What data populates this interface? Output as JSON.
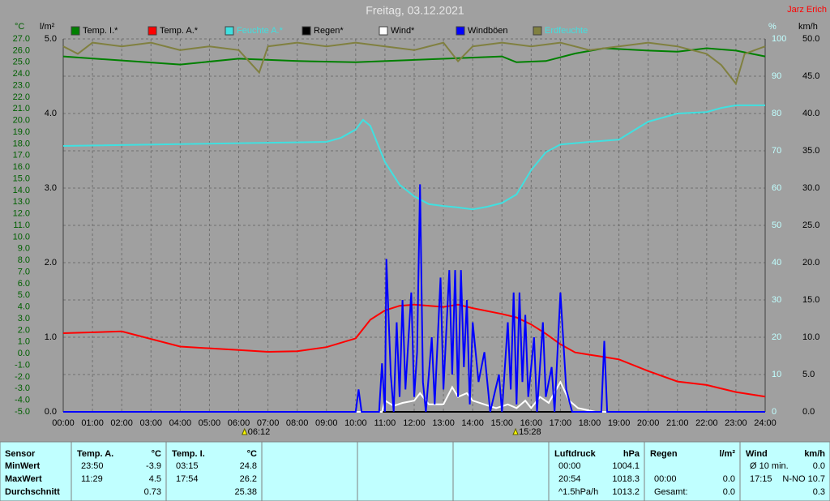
{
  "chart_data": {
    "type": "line",
    "title": "Freitag, 03.12.2021",
    "author": "Jarz Erich",
    "units": {
      "y": "°C",
      "y4": "l/m²",
      "y2": "%",
      "y3": "km/h"
    },
    "sunrise": "06:12",
    "sunset": "15:28",
    "grid": true,
    "xlim": [
      0,
      24
    ],
    "xticks": [
      {
        "value": 0,
        "label": "00:00"
      },
      {
        "value": 1,
        "label": "01:00"
      },
      {
        "value": 2,
        "label": "02:00"
      },
      {
        "value": 3,
        "label": "03:00"
      },
      {
        "value": 4,
        "label": "04:00"
      },
      {
        "value": 5,
        "label": "05:00"
      },
      {
        "value": 6,
        "label": "06:00"
      },
      {
        "value": 7,
        "label": "07:00"
      },
      {
        "value": 8,
        "label": "08:00"
      },
      {
        "value": 9,
        "label": "09:00"
      },
      {
        "value": 10,
        "label": "10:00"
      },
      {
        "value": 11,
        "label": "11:00"
      },
      {
        "value": 12,
        "label": "12:00"
      },
      {
        "value": 13,
        "label": "13:00"
      },
      {
        "value": 14,
        "label": "14:00"
      },
      {
        "value": 15,
        "label": "15:00"
      },
      {
        "value": 16,
        "label": "16:00"
      },
      {
        "value": 17,
        "label": "17:00"
      },
      {
        "value": 18,
        "label": "18:00"
      },
      {
        "value": 19,
        "label": "19:00"
      },
      {
        "value": 20,
        "label": "20:00"
      },
      {
        "value": 21,
        "label": "21:00"
      },
      {
        "value": 22,
        "label": "22:00"
      },
      {
        "value": 23,
        "label": "23:00"
      },
      {
        "value": 24,
        "label": "24:00"
      }
    ],
    "ylim": [
      -5,
      27
    ],
    "yticks": [
      {
        "value": -5,
        "label": "-5.0"
      },
      {
        "value": -4,
        "label": "-4.0"
      },
      {
        "value": -3,
        "label": "-3.0"
      },
      {
        "value": -2,
        "label": "-2.0"
      },
      {
        "value": -1,
        "label": "-1.0"
      },
      {
        "value": 0,
        "label": "0.0"
      },
      {
        "value": 1,
        "label": "1.0"
      },
      {
        "value": 2,
        "label": "2.0"
      },
      {
        "value": 3,
        "label": "3.0"
      },
      {
        "value": 4,
        "label": "4.0"
      },
      {
        "value": 5,
        "label": "5.0"
      },
      {
        "value": 6,
        "label": "6.0"
      },
      {
        "value": 7,
        "label": "7.0"
      },
      {
        "value": 8,
        "label": "8.0"
      },
      {
        "value": 9,
        "label": "9.0"
      },
      {
        "value": 10,
        "label": "10.0"
      },
      {
        "value": 11,
        "label": "11.0"
      },
      {
        "value": 12,
        "label": "12.0"
      },
      {
        "value": 13,
        "label": "13.0"
      },
      {
        "value": 14,
        "label": "14.0"
      },
      {
        "value": 15,
        "label": "15.0"
      },
      {
        "value": 16,
        "label": "16.0"
      },
      {
        "value": 17,
        "label": "17.0"
      },
      {
        "value": 18,
        "label": "18.0"
      },
      {
        "value": 19,
        "label": "19.0"
      },
      {
        "value": 20,
        "label": "20.0"
      },
      {
        "value": 21,
        "label": "21.0"
      },
      {
        "value": 22,
        "label": "22.0"
      },
      {
        "value": 23,
        "label": "23.0"
      },
      {
        "value": 24,
        "label": "24.0"
      },
      {
        "value": 25,
        "label": "25.0"
      },
      {
        "value": 26,
        "label": "26.0"
      },
      {
        "value": 27,
        "label": "27.0"
      }
    ],
    "y4lim": [
      0,
      5
    ],
    "y4ticks": [
      {
        "value": 0,
        "label": "0.0"
      },
      {
        "value": 1,
        "label": "1.0"
      },
      {
        "value": 2,
        "label": "2.0"
      },
      {
        "value": 3,
        "label": "3.0"
      },
      {
        "value": 4,
        "label": "4.0"
      },
      {
        "value": 5,
        "label": "5.0"
      }
    ],
    "y2lim": [
      0,
      100
    ],
    "y2ticks": [
      0,
      10,
      20,
      30,
      40,
      50,
      60,
      70,
      80,
      90,
      100
    ],
    "y3lim": [
      0,
      50
    ],
    "y3ticks": [
      {
        "value": 0,
        "label": "0.0"
      },
      {
        "value": 5,
        "label": "5.0"
      },
      {
        "value": 10,
        "label": "10.0"
      },
      {
        "value": 15,
        "label": "15.0"
      },
      {
        "value": 20,
        "label": "20.0"
      },
      {
        "value": 25,
        "label": "25.0"
      },
      {
        "value": 30,
        "label": "30.0"
      },
      {
        "value": 35,
        "label": "35.0"
      },
      {
        "value": 40,
        "label": "40.0"
      },
      {
        "value": 45,
        "label": "45.0"
      },
      {
        "value": 50,
        "label": "50.0"
      }
    ],
    "series": [
      {
        "name": "Temp. I.*",
        "color": "#008000",
        "axis": "y",
        "x": [
          0,
          4,
          6,
          8,
          10,
          12,
          15,
          15.5,
          16.5,
          17.5,
          18.5,
          20,
          21,
          22,
          23,
          24
        ],
        "values": [
          25.5,
          24.8,
          25.3,
          25.1,
          25.0,
          25.2,
          25.5,
          25.0,
          25.1,
          25.75,
          26.2,
          26.0,
          25.9,
          26.2,
          26.0,
          25.5
        ]
      },
      {
        "name": "Temp. A.*",
        "color": "#ff0000",
        "axis": "y",
        "x": [
          0,
          2,
          4,
          6,
          7,
          8,
          9,
          10,
          10.5,
          11,
          11.5,
          12,
          13,
          13.5,
          14,
          15,
          15.5,
          16,
          16.5,
          17,
          17.5,
          18,
          18.5,
          19,
          20,
          21,
          22,
          23,
          24
        ],
        "values": [
          1.75,
          1.9,
          0.6,
          0.3,
          0.15,
          0.2,
          0.55,
          1.3,
          2.9,
          3.7,
          4.1,
          4.2,
          4.0,
          4.2,
          3.9,
          3.4,
          3.1,
          2.5,
          1.7,
          0.8,
          0.1,
          -0.1,
          -0.3,
          -0.5,
          -1.5,
          -2.4,
          -2.7,
          -3.3,
          -3.7
        ]
      },
      {
        "name": "Feuchte A.*",
        "color": "#40e0e0",
        "axis": "y2",
        "x": [
          0,
          9,
          9.5,
          10,
          10.25,
          10.5,
          11,
          11.5,
          12,
          12.5,
          13,
          13.5,
          14,
          14.5,
          15,
          15.5,
          16,
          16.5,
          17,
          18,
          19,
          20,
          21,
          22,
          22.5,
          23,
          24
        ],
        "values": [
          71.3,
          72.4,
          73.5,
          75.7,
          78.3,
          76.7,
          67,
          60.9,
          57.8,
          55.7,
          55.2,
          54.8,
          54.3,
          55,
          56,
          58.3,
          64.8,
          69.6,
          71.7,
          72.4,
          73,
          77.8,
          80,
          80.4,
          81.5,
          82.2,
          82.2
        ]
      },
      {
        "name": "Regen*",
        "color": "#000000",
        "axis": "y4",
        "x": [
          0,
          24
        ],
        "values": [
          0,
          0
        ]
      },
      {
        "name": "Wind*",
        "color": "#ffffff",
        "axis": "y3",
        "x": [
          0,
          10.9,
          11.0,
          11.3,
          11.6,
          12.0,
          12.2,
          12.5,
          13.0,
          13.3,
          13.5,
          13.8,
          14.0,
          14.4,
          14.8,
          15.2,
          15.5,
          15.8,
          16.0,
          16.3,
          16.6,
          17.0,
          17.3,
          17.6,
          18.2,
          24
        ],
        "values": [
          0,
          0,
          1.5,
          0.8,
          1.2,
          1.5,
          2.5,
          1,
          1,
          3.3,
          2,
          2.5,
          1.5,
          1,
          0.5,
          1,
          0.5,
          1.5,
          0.5,
          2,
          1.2,
          4,
          1.5,
          0.5,
          0,
          0
        ]
      },
      {
        "name": "Windböen",
        "color": "#0000ff",
        "axis": "y3",
        "x": [
          0,
          10,
          10.1,
          10.2,
          10.8,
          10.9,
          11.0,
          11.05,
          11.2,
          11.3,
          11.4,
          11.5,
          11.6,
          11.7,
          11.9,
          12.0,
          12.1,
          12.2,
          12.3,
          12.4,
          12.6,
          12.7,
          12.9,
          13.0,
          13.2,
          13.3,
          13.4,
          13.5,
          13.6,
          13.7,
          13.8,
          13.9,
          14.0,
          14.2,
          14.4,
          14.6,
          14.9,
          15.0,
          15.2,
          15.3,
          15.4,
          15.5,
          15.6,
          15.7,
          15.8,
          15.9,
          16.1,
          16.2,
          16.4,
          16.5,
          16.7,
          16.8,
          17.0,
          17.2,
          17.4,
          18.4,
          18.5,
          18.6,
          24
        ],
        "values": [
          0,
          0,
          3,
          0,
          0,
          6.5,
          0,
          20.5,
          5,
          0,
          12,
          2,
          15,
          3,
          16,
          2,
          8,
          30.5,
          4,
          0,
          10,
          1,
          18,
          3,
          19,
          5,
          19,
          2,
          19,
          6,
          15,
          1,
          12,
          4,
          8,
          0,
          5,
          0,
          12,
          3,
          16,
          1,
          16,
          4,
          13,
          2,
          10,
          0,
          12,
          2,
          6,
          0,
          16,
          3,
          0,
          0,
          9.5,
          0,
          0
        ]
      },
      {
        "name": "Erdfeuchte",
        "color": "#808040",
        "axis": "y2",
        "x": [
          0,
          0.5,
          1,
          2,
          3,
          4,
          5,
          6,
          6.7,
          7,
          8,
          9,
          10,
          11,
          12,
          13,
          13.5,
          14,
          15,
          16,
          17,
          18,
          19,
          20,
          21,
          22,
          22.5,
          23,
          23.3,
          24
        ],
        "values": [
          98,
          96,
          99,
          98,
          99,
          97,
          98,
          97,
          91,
          98,
          99,
          98,
          99,
          98,
          97,
          99,
          94,
          98,
          99,
          98,
          99,
          97,
          98,
          99,
          98,
          96,
          93,
          88,
          96,
          98
        ]
      }
    ]
  },
  "table": {
    "sensor_header": "Sensor",
    "row_labels": [
      "MinWert",
      "MaxWert",
      "Durchschnitt"
    ],
    "groups": [
      {
        "name": "Temp. A.",
        "unit": "°C",
        "rows": [
          [
            "23:50",
            "-3.9"
          ],
          [
            "11:29",
            "4.5"
          ],
          [
            null,
            "0.73"
          ]
        ]
      },
      {
        "name": "Temp. I.",
        "unit": "°C",
        "rows": [
          [
            "03:15",
            "24.8"
          ],
          [
            "17:54",
            "26.2"
          ],
          [
            null,
            "25.38"
          ]
        ]
      },
      {
        "name": "Luftdruck",
        "unit": "hPa",
        "rows": [
          [
            "00:00",
            "1004.1"
          ],
          [
            "20:54",
            "1018.3"
          ],
          [
            "^1.5hPa/h",
            "1013.2"
          ]
        ]
      },
      {
        "name": "Regen",
        "unit": "l/m²",
        "rows": [
          [
            null,
            null
          ],
          [
            "00:00",
            "0.0"
          ],
          [
            "Gesamt:",
            "0.0"
          ]
        ]
      },
      {
        "name": "Wind",
        "unit": "km/h",
        "rows": [
          [
            "Ø 10 min.",
            "0.0"
          ],
          [
            "17:15",
            "N-NO 10.7"
          ],
          [
            null,
            "0.3"
          ]
        ]
      }
    ]
  }
}
